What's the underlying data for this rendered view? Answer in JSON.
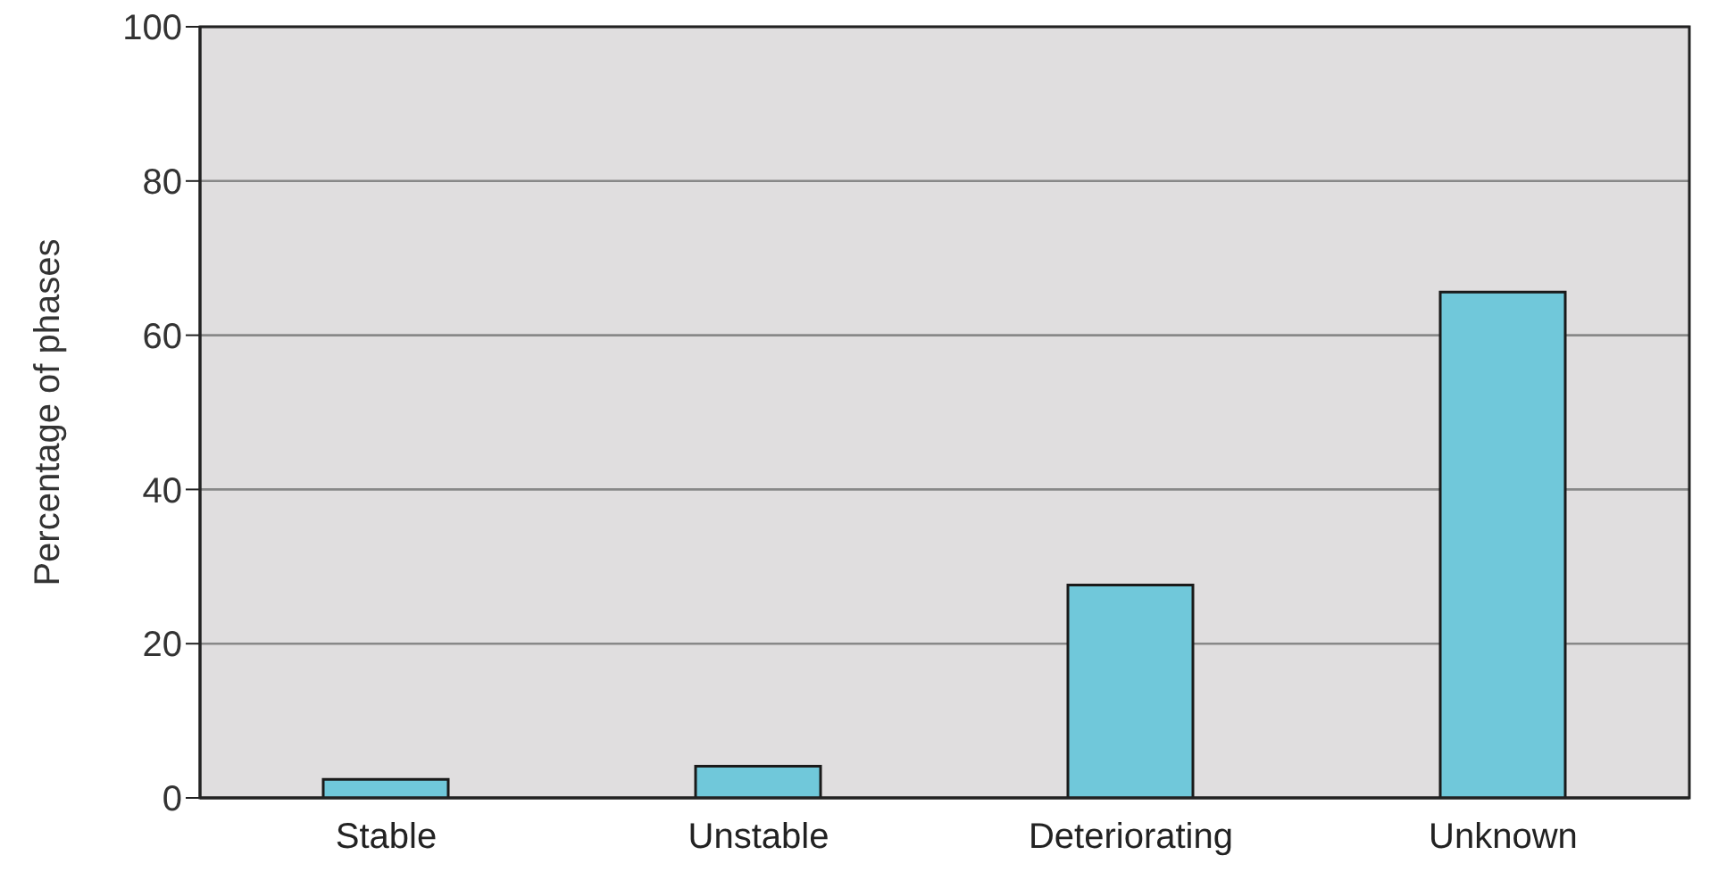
{
  "chart_data": {
    "type": "bar",
    "ylabel": "Percentage of phases",
    "categories": [
      "Stable",
      "Unstable",
      "Deteriorating",
      "Unknown"
    ],
    "values": [
      2.4,
      4.1,
      27.6,
      65.6
    ],
    "color": "#70c8da",
    "ylim": [
      0,
      100
    ],
    "yticks": [
      0,
      20,
      40,
      60,
      80,
      100
    ],
    "grid": "y"
  }
}
